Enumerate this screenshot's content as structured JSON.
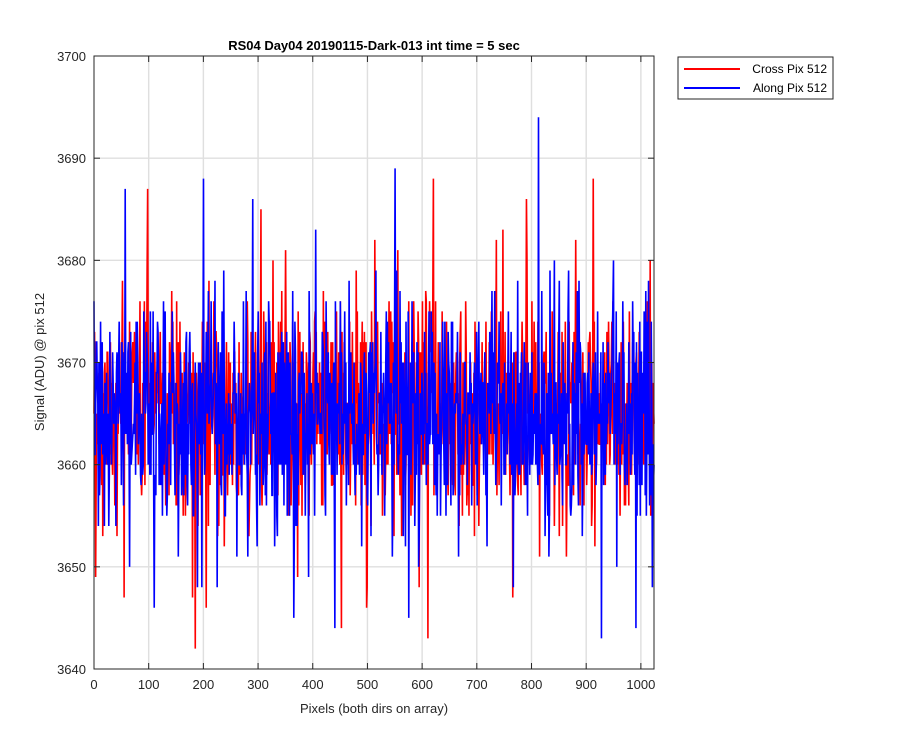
{
  "chart_data": {
    "type": "line",
    "title": "RS04 Day04 20190115-Dark-013 int time = 5 sec",
    "xlabel": "Pixels (both dirs on array)",
    "ylabel": "Signal (ADU) @ pix 512",
    "xlim": [
      0,
      1024
    ],
    "ylim": [
      3640,
      3700
    ],
    "xticks": [
      0,
      100,
      200,
      300,
      400,
      500,
      600,
      700,
      800,
      900,
      1000
    ],
    "yticks": [
      3640,
      3650,
      3660,
      3670,
      3680,
      3690,
      3700
    ],
    "grid": true,
    "legend_position": "outside-top-right",
    "series": [
      {
        "name": "Cross Pix 512",
        "color": "#ff0000",
        "n_points": 1024,
        "baseline": 3665.0,
        "spread": 5.5,
        "keypoints": [
          [
            0,
            3665
          ],
          [
            3,
            3649
          ],
          [
            6,
            3662
          ],
          [
            18,
            3658
          ],
          [
            52,
            3678
          ],
          [
            55,
            3647
          ],
          [
            98,
            3687
          ],
          [
            180,
            3647
          ],
          [
            185,
            3642
          ],
          [
            205,
            3646
          ],
          [
            305,
            3685
          ],
          [
            350,
            3681
          ],
          [
            498,
            3646
          ],
          [
            555,
            3681
          ],
          [
            610,
            3643
          ],
          [
            620,
            3688
          ],
          [
            735,
            3682
          ],
          [
            765,
            3647
          ],
          [
            790,
            3686
          ],
          [
            880,
            3682
          ],
          [
            912,
            3688
          ],
          [
            1024,
            3664
          ]
        ]
      },
      {
        "name": "Along Pix 512",
        "color": "#0000ff",
        "n_points": 1024,
        "baseline": 3665.0,
        "spread": 5.8,
        "keypoints": [
          [
            0,
            3676
          ],
          [
            3,
            3665
          ],
          [
            12,
            3674
          ],
          [
            110,
            3646
          ],
          [
            200,
            3688
          ],
          [
            225,
            3648
          ],
          [
            290,
            3686
          ],
          [
            365,
            3645
          ],
          [
            440,
            3644
          ],
          [
            550,
            3689
          ],
          [
            575,
            3645
          ],
          [
            812,
            3694
          ],
          [
            927,
            3643
          ],
          [
            990,
            3644
          ],
          [
            1020,
            3648
          ],
          [
            1024,
            3660
          ]
        ]
      }
    ]
  }
}
